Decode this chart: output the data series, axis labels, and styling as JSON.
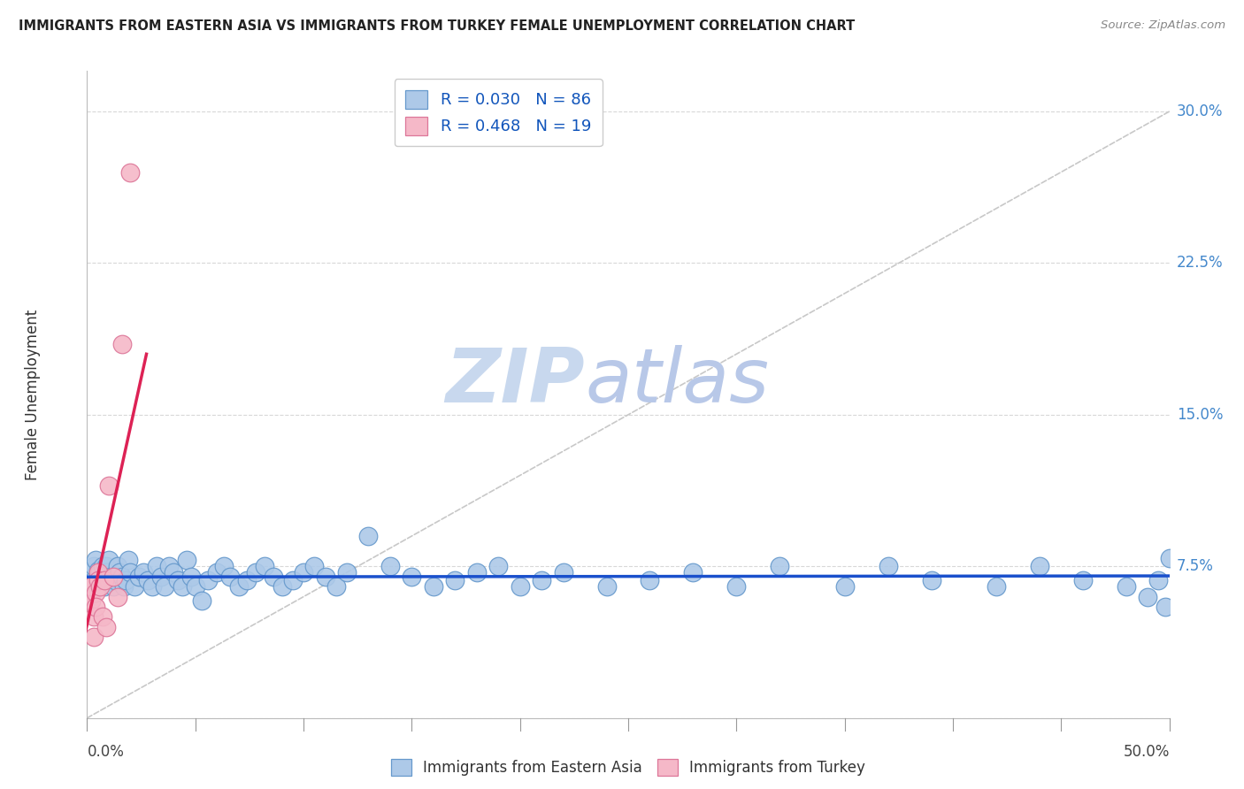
{
  "title": "IMMIGRANTS FROM EASTERN ASIA VS IMMIGRANTS FROM TURKEY FEMALE UNEMPLOYMENT CORRELATION CHART",
  "source": "Source: ZipAtlas.com",
  "ylabel": "Female Unemployment",
  "xlim": [
    0.0,
    0.5
  ],
  "ylim": [
    0.0,
    0.32
  ],
  "yticks": [
    0.0,
    0.075,
    0.15,
    0.225,
    0.3
  ],
  "ytick_labels": [
    "",
    "7.5%",
    "15.0%",
    "22.5%",
    "30.0%"
  ],
  "xtick_labels": [
    "0.0%",
    "",
    "",
    "",
    "",
    "",
    "",
    "",
    "",
    "",
    "50.0%"
  ],
  "legend_r1": "R = 0.030",
  "legend_n1": "N = 86",
  "legend_r2": "R = 0.468",
  "legend_n2": "N = 19",
  "color_blue_fill": "#adc9e8",
  "color_blue_edge": "#6699cc",
  "color_pink_fill": "#f5b8c8",
  "color_pink_edge": "#dd7799",
  "color_trend_blue": "#1a50cc",
  "color_trend_pink": "#dd2255",
  "color_diag": "#c8c8c8",
  "watermark_zip": "ZIP",
  "watermark_atlas": "atlas",
  "watermark_color_zip": "#c8d8ee",
  "watermark_color_atlas": "#b8c8e8",
  "grid_color": "#d8d8d8",
  "eastern_asia_x": [
    0.002,
    0.003,
    0.003,
    0.004,
    0.004,
    0.005,
    0.005,
    0.005,
    0.006,
    0.006,
    0.007,
    0.007,
    0.008,
    0.008,
    0.009,
    0.009,
    0.01,
    0.01,
    0.011,
    0.012,
    0.013,
    0.014,
    0.015,
    0.016,
    0.017,
    0.018,
    0.019,
    0.02,
    0.022,
    0.024,
    0.026,
    0.028,
    0.03,
    0.032,
    0.034,
    0.036,
    0.038,
    0.04,
    0.042,
    0.044,
    0.046,
    0.048,
    0.05,
    0.053,
    0.056,
    0.06,
    0.063,
    0.066,
    0.07,
    0.074,
    0.078,
    0.082,
    0.086,
    0.09,
    0.095,
    0.1,
    0.105,
    0.11,
    0.115,
    0.12,
    0.13,
    0.14,
    0.15,
    0.16,
    0.17,
    0.18,
    0.19,
    0.2,
    0.21,
    0.22,
    0.24,
    0.26,
    0.28,
    0.3,
    0.32,
    0.35,
    0.37,
    0.39,
    0.42,
    0.44,
    0.46,
    0.48,
    0.49,
    0.495,
    0.498,
    0.5
  ],
  "eastern_asia_y": [
    0.072,
    0.068,
    0.075,
    0.065,
    0.078,
    0.07,
    0.073,
    0.065,
    0.068,
    0.072,
    0.075,
    0.07,
    0.065,
    0.068,
    0.075,
    0.072,
    0.068,
    0.078,
    0.07,
    0.065,
    0.068,
    0.075,
    0.072,
    0.07,
    0.065,
    0.068,
    0.078,
    0.072,
    0.065,
    0.07,
    0.072,
    0.068,
    0.065,
    0.075,
    0.07,
    0.065,
    0.075,
    0.072,
    0.068,
    0.065,
    0.078,
    0.07,
    0.065,
    0.058,
    0.068,
    0.072,
    0.075,
    0.07,
    0.065,
    0.068,
    0.072,
    0.075,
    0.07,
    0.065,
    0.068,
    0.072,
    0.075,
    0.07,
    0.065,
    0.072,
    0.09,
    0.075,
    0.07,
    0.065,
    0.068,
    0.072,
    0.075,
    0.065,
    0.068,
    0.072,
    0.065,
    0.068,
    0.072,
    0.065,
    0.075,
    0.065,
    0.075,
    0.068,
    0.065,
    0.075,
    0.068,
    0.065,
    0.06,
    0.068,
    0.055,
    0.079
  ],
  "turkey_x": [
    0.001,
    0.001,
    0.002,
    0.002,
    0.003,
    0.003,
    0.004,
    0.004,
    0.005,
    0.005,
    0.006,
    0.007,
    0.008,
    0.009,
    0.01,
    0.012,
    0.014,
    0.016,
    0.02
  ],
  "turkey_y": [
    0.065,
    0.06,
    0.058,
    0.065,
    0.05,
    0.04,
    0.062,
    0.055,
    0.072,
    0.068,
    0.065,
    0.05,
    0.068,
    0.045,
    0.115,
    0.07,
    0.06,
    0.185,
    0.27
  ]
}
